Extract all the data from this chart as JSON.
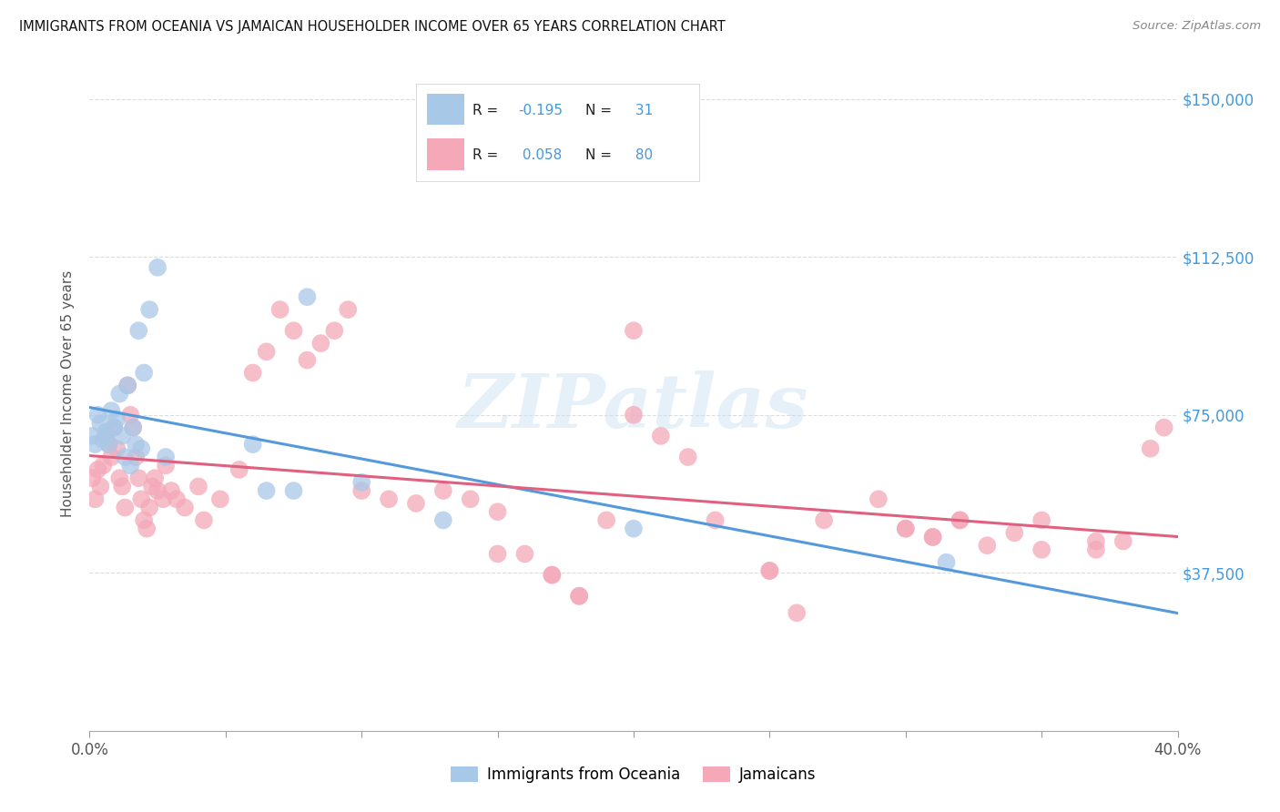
{
  "title": "IMMIGRANTS FROM OCEANIA VS JAMAICAN HOUSEHOLDER INCOME OVER 65 YEARS CORRELATION CHART",
  "source": "Source: ZipAtlas.com",
  "ylabel": "Householder Income Over 65 years",
  "yticks": [
    0,
    37500,
    75000,
    112500,
    150000
  ],
  "ytick_labels": [
    "",
    "$37,500",
    "$75,000",
    "$112,500",
    "$150,000"
  ],
  "xlim": [
    0.0,
    0.4
  ],
  "ylim": [
    0,
    160000
  ],
  "watermark": "ZIPatlas",
  "color_blue": "#a8c8e8",
  "color_pink": "#f4a8b8",
  "color_blue_text": "#4499dd",
  "color_dark": "#333333",
  "legend_r1_label": "R = ",
  "legend_r1_val": "-0.195",
  "legend_n1_label": "N = ",
  "legend_n1_val": " 31",
  "legend_r2_label": "R = ",
  "legend_r2_val": " 0.058",
  "legend_n2_label": "N = ",
  "legend_n2_val": " 80",
  "blue_label": "Immigrants from Oceania",
  "pink_label": "Jamaicans",
  "blue_points_x": [
    0.001,
    0.002,
    0.003,
    0.004,
    0.005,
    0.006,
    0.007,
    0.008,
    0.009,
    0.01,
    0.011,
    0.012,
    0.013,
    0.014,
    0.015,
    0.016,
    0.017,
    0.018,
    0.019,
    0.02,
    0.022,
    0.025,
    0.028,
    0.06,
    0.065,
    0.075,
    0.08,
    0.1,
    0.13,
    0.2,
    0.315
  ],
  "blue_points_y": [
    70000,
    68000,
    75000,
    73000,
    69000,
    71000,
    68000,
    76000,
    72000,
    74000,
    80000,
    70000,
    65000,
    82000,
    63000,
    72000,
    68000,
    95000,
    67000,
    85000,
    100000,
    110000,
    65000,
    68000,
    57000,
    57000,
    103000,
    59000,
    50000,
    48000,
    40000
  ],
  "pink_points_x": [
    0.001,
    0.002,
    0.003,
    0.004,
    0.005,
    0.006,
    0.007,
    0.008,
    0.009,
    0.01,
    0.011,
    0.012,
    0.013,
    0.014,
    0.015,
    0.016,
    0.017,
    0.018,
    0.019,
    0.02,
    0.021,
    0.022,
    0.023,
    0.024,
    0.025,
    0.027,
    0.028,
    0.03,
    0.032,
    0.035,
    0.04,
    0.042,
    0.048,
    0.055,
    0.06,
    0.065,
    0.07,
    0.075,
    0.08,
    0.085,
    0.09,
    0.095,
    0.1,
    0.11,
    0.12,
    0.13,
    0.14,
    0.15,
    0.16,
    0.17,
    0.18,
    0.19,
    0.2,
    0.21,
    0.22,
    0.23,
    0.25,
    0.26,
    0.27,
    0.29,
    0.3,
    0.31,
    0.32,
    0.33,
    0.34,
    0.35,
    0.37,
    0.38,
    0.39,
    0.395,
    0.2,
    0.25,
    0.15,
    0.17,
    0.18,
    0.3,
    0.31,
    0.32,
    0.35,
    0.37
  ],
  "pink_points_y": [
    60000,
    55000,
    62000,
    58000,
    63000,
    70000,
    68000,
    65000,
    72000,
    67000,
    60000,
    58000,
    53000,
    82000,
    75000,
    72000,
    65000,
    60000,
    55000,
    50000,
    48000,
    53000,
    58000,
    60000,
    57000,
    55000,
    63000,
    57000,
    55000,
    53000,
    58000,
    50000,
    55000,
    62000,
    85000,
    90000,
    100000,
    95000,
    88000,
    92000,
    95000,
    100000,
    57000,
    55000,
    54000,
    57000,
    55000,
    52000,
    42000,
    37000,
    32000,
    50000,
    75000,
    70000,
    65000,
    50000,
    38000,
    28000,
    50000,
    55000,
    48000,
    46000,
    50000,
    44000,
    47000,
    50000,
    43000,
    45000,
    67000,
    72000,
    95000,
    38000,
    42000,
    37000,
    32000,
    48000,
    46000,
    50000,
    43000,
    45000
  ]
}
